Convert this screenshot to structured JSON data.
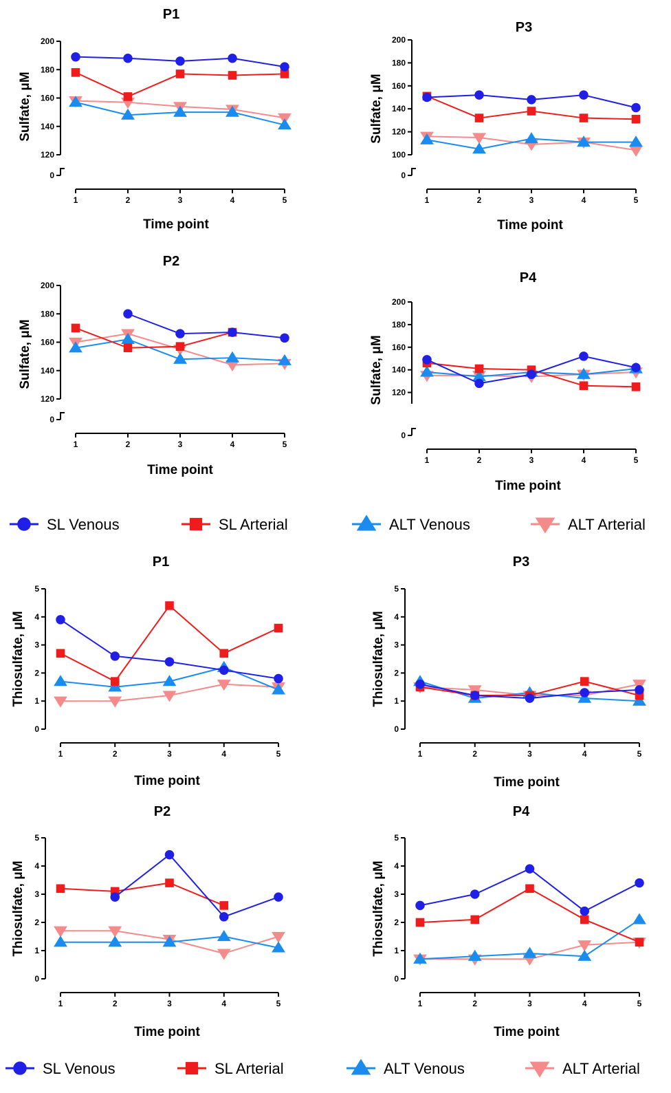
{
  "colors": {
    "SL Venous": "#1f1fe6",
    "SL Arterial": "#ee1c1c",
    "ALT Venous": "#1a8cf0",
    "ALT Arterial": "#f48a8a"
  },
  "legend": [
    "SL Venous",
    "SL Arterial",
    "ALT Venous",
    "ALT Arterial"
  ],
  "chart_data": [
    {
      "type": "line",
      "title": "P1",
      "xlabel": "Time point",
      "ylabel": "Sulfate, μM",
      "x": [
        1,
        2,
        3,
        4,
        5
      ],
      "ylim": [
        120,
        200
      ],
      "yticks": [
        120,
        140,
        160,
        180,
        200
      ],
      "axis_break": true,
      "series": [
        {
          "name": "SL Venous",
          "marker": "circle",
          "values": [
            189,
            188,
            186,
            188,
            182
          ]
        },
        {
          "name": "SL Arterial",
          "marker": "square",
          "values": [
            178,
            161,
            177,
            176,
            177
          ]
        },
        {
          "name": "ALT Venous",
          "marker": "triangle-up",
          "values": [
            157,
            148,
            150,
            150,
            141
          ]
        },
        {
          "name": "ALT Arterial",
          "marker": "triangle-down",
          "values": [
            158,
            157,
            154,
            152,
            146
          ]
        }
      ]
    },
    {
      "type": "line",
      "title": "P3",
      "xlabel": "Time point",
      "ylabel": "Sulfate, μM",
      "x": [
        1,
        2,
        3,
        4,
        5
      ],
      "ylim": [
        100,
        200
      ],
      "yticks": [
        100,
        120,
        140,
        160,
        180,
        200
      ],
      "axis_break": true,
      "series": [
        {
          "name": "SL Venous",
          "marker": "circle",
          "values": [
            150,
            152,
            148,
            152,
            141
          ]
        },
        {
          "name": "SL Arterial",
          "marker": "square",
          "values": [
            151,
            132,
            138,
            132,
            131
          ]
        },
        {
          "name": "ALT Venous",
          "marker": "triangle-up",
          "values": [
            113,
            105,
            114,
            111,
            111
          ]
        },
        {
          "name": "ALT Arterial",
          "marker": "triangle-down",
          "values": [
            116,
            115,
            109,
            111,
            104
          ]
        }
      ]
    },
    {
      "type": "line",
      "title": "P2",
      "xlabel": "Time point",
      "ylabel": "Sulfate, μM",
      "x": [
        1,
        2,
        3,
        4,
        5
      ],
      "ylim": [
        120,
        200
      ],
      "yticks": [
        120,
        140,
        160,
        180,
        200
      ],
      "axis_break": true,
      "series": [
        {
          "name": "SL Venous",
          "marker": "circle",
          "values": [
            null,
            180,
            166,
            167,
            163
          ]
        },
        {
          "name": "SL Arterial",
          "marker": "square",
          "values": [
            170,
            156,
            157,
            167,
            null
          ]
        },
        {
          "name": "ALT Venous",
          "marker": "triangle-up",
          "values": [
            156,
            162,
            148,
            149,
            147
          ]
        },
        {
          "name": "ALT Arterial",
          "marker": "triangle-down",
          "values": [
            160,
            166,
            155,
            144,
            145
          ]
        }
      ]
    },
    {
      "type": "line",
      "title": "P4",
      "xlabel": "Time point",
      "ylabel": "Sulfate, μM",
      "x": [
        1,
        2,
        3,
        4,
        5
      ],
      "ylim": [
        110,
        200
      ],
      "yticks": [
        120,
        140,
        160,
        180,
        200
      ],
      "axis_break": true,
      "series": [
        {
          "name": "SL Venous",
          "marker": "circle",
          "values": [
            149,
            128,
            136,
            152,
            142
          ]
        },
        {
          "name": "SL Arterial",
          "marker": "square",
          "values": [
            146,
            141,
            140,
            126,
            125
          ]
        },
        {
          "name": "ALT Venous",
          "marker": "triangle-up",
          "values": [
            138,
            134,
            138,
            136,
            141
          ]
        },
        {
          "name": "ALT Arterial",
          "marker": "triangle-down",
          "values": [
            135,
            135,
            134,
            136,
            138
          ]
        }
      ]
    },
    {
      "type": "line",
      "title": "P1",
      "xlabel": "Time point",
      "ylabel": "Thiosulfate, μM",
      "x": [
        1,
        2,
        3,
        4,
        5
      ],
      "ylim": [
        0,
        5
      ],
      "yticks": [
        0,
        1,
        2,
        3,
        4,
        5
      ],
      "axis_break": false,
      "series": [
        {
          "name": "SL Venous",
          "marker": "circle",
          "values": [
            3.9,
            2.6,
            2.4,
            2.1,
            1.8
          ]
        },
        {
          "name": "SL Arterial",
          "marker": "square",
          "values": [
            2.7,
            1.7,
            4.4,
            2.7,
            3.6
          ]
        },
        {
          "name": "ALT Venous",
          "marker": "triangle-up",
          "values": [
            1.7,
            1.5,
            1.7,
            2.2,
            1.4
          ]
        },
        {
          "name": "ALT Arterial",
          "marker": "triangle-down",
          "values": [
            1.0,
            1.0,
            1.2,
            1.6,
            1.5
          ]
        }
      ]
    },
    {
      "type": "line",
      "title": "P3",
      "xlabel": "Time point",
      "ylabel": "Thiosulfate, μM",
      "x": [
        1,
        2,
        3,
        4,
        5
      ],
      "ylim": [
        0,
        5
      ],
      "yticks": [
        0,
        1,
        2,
        3,
        4,
        5
      ],
      "axis_break": false,
      "series": [
        {
          "name": "SL Venous",
          "marker": "circle",
          "values": [
            1.6,
            1.2,
            1.1,
            1.3,
            1.4
          ]
        },
        {
          "name": "SL Arterial",
          "marker": "square",
          "values": [
            1.5,
            1.2,
            1.2,
            1.7,
            1.2
          ]
        },
        {
          "name": "ALT Venous",
          "marker": "triangle-up",
          "values": [
            1.7,
            1.1,
            1.3,
            1.1,
            1.0
          ]
        },
        {
          "name": "ALT Arterial",
          "marker": "triangle-down",
          "values": [
            1.5,
            1.4,
            1.2,
            1.2,
            1.6
          ]
        }
      ]
    },
    {
      "type": "line",
      "title": "P2",
      "xlabel": "Time point",
      "ylabel": "Thiosulfate, μM",
      "x": [
        1,
        2,
        3,
        4,
        5
      ],
      "ylim": [
        0,
        5
      ],
      "yticks": [
        0,
        1,
        2,
        3,
        4,
        5
      ],
      "axis_break": false,
      "series": [
        {
          "name": "SL Venous",
          "marker": "circle",
          "values": [
            null,
            2.9,
            4.4,
            2.2,
            2.9
          ]
        },
        {
          "name": "SL Arterial",
          "marker": "square",
          "values": [
            3.2,
            3.1,
            3.4,
            2.6,
            null
          ]
        },
        {
          "name": "ALT Venous",
          "marker": "triangle-up",
          "values": [
            1.3,
            1.3,
            1.3,
            1.5,
            1.1
          ]
        },
        {
          "name": "ALT Arterial",
          "marker": "triangle-down",
          "values": [
            1.7,
            1.7,
            1.4,
            0.9,
            1.5
          ]
        }
      ]
    },
    {
      "type": "line",
      "title": "P4",
      "xlabel": "Time point",
      "ylabel": "Thiosulfate, μM",
      "x": [
        1,
        2,
        3,
        4,
        5
      ],
      "ylim": [
        0,
        5
      ],
      "yticks": [
        0,
        1,
        2,
        3,
        4,
        5
      ],
      "axis_break": false,
      "series": [
        {
          "name": "SL Venous",
          "marker": "circle",
          "values": [
            2.6,
            3.0,
            3.9,
            2.4,
            3.4
          ]
        },
        {
          "name": "SL Arterial",
          "marker": "square",
          "values": [
            2.0,
            2.1,
            3.2,
            2.1,
            1.3
          ]
        },
        {
          "name": "ALT Venous",
          "marker": "triangle-up",
          "values": [
            0.7,
            0.8,
            0.9,
            0.8,
            2.1
          ]
        },
        {
          "name": "ALT Arterial",
          "marker": "triangle-down",
          "values": [
            0.7,
            0.7,
            0.7,
            1.2,
            1.3
          ]
        }
      ]
    }
  ]
}
